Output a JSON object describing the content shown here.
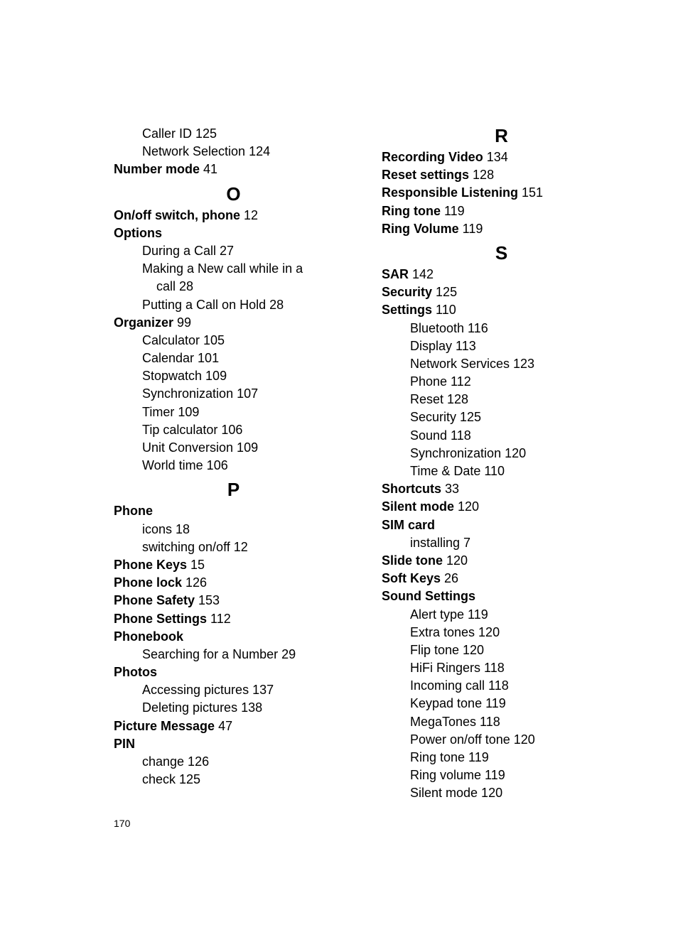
{
  "pageNumber": "170",
  "left": [
    {
      "indent": 1,
      "bold": false,
      "text": "Caller ID  125"
    },
    {
      "indent": 1,
      "bold": false,
      "text": "Network Selection  124"
    },
    {
      "indent": 0,
      "bold": false,
      "mixed": true,
      "boldPart": "Number mode",
      "rest": "  41"
    },
    {
      "letter": "O"
    },
    {
      "indent": 0,
      "bold": false,
      "mixed": true,
      "boldPart": "On/off switch, phone",
      "rest": "  12"
    },
    {
      "indent": 0,
      "bold": true,
      "text": "Options"
    },
    {
      "indent": 1,
      "bold": false,
      "text": "During a Call  27"
    },
    {
      "indent": 1,
      "bold": false,
      "text": "Making a New call while in a"
    },
    {
      "indent": 2,
      "bold": false,
      "text": "call  28"
    },
    {
      "indent": 1,
      "bold": false,
      "text": "Putting a Call on Hold  28"
    },
    {
      "indent": 0,
      "bold": false,
      "mixed": true,
      "boldPart": "Organizer",
      "rest": "  99"
    },
    {
      "indent": 1,
      "bold": false,
      "text": "Calculator  105"
    },
    {
      "indent": 1,
      "bold": false,
      "text": "Calendar  101"
    },
    {
      "indent": 1,
      "bold": false,
      "text": "Stopwatch  109"
    },
    {
      "indent": 1,
      "bold": false,
      "text": "Synchronization  107"
    },
    {
      "indent": 1,
      "bold": false,
      "text": "Timer  109"
    },
    {
      "indent": 1,
      "bold": false,
      "text": "Tip calculator  106"
    },
    {
      "indent": 1,
      "bold": false,
      "text": "Unit Conversion  109"
    },
    {
      "indent": 1,
      "bold": false,
      "text": "World time  106"
    },
    {
      "letter": "P"
    },
    {
      "indent": 0,
      "bold": true,
      "text": "Phone"
    },
    {
      "indent": 1,
      "bold": false,
      "text": "icons  18"
    },
    {
      "indent": 1,
      "bold": false,
      "text": "switching on/off  12"
    },
    {
      "indent": 0,
      "bold": false,
      "mixed": true,
      "boldPart": "Phone Keys",
      "rest": "  15"
    },
    {
      "indent": 0,
      "bold": false,
      "mixed": true,
      "boldPart": "Phone lock",
      "rest": "  126"
    },
    {
      "indent": 0,
      "bold": false,
      "mixed": true,
      "boldPart": "Phone Safety",
      "rest": "  153"
    },
    {
      "indent": 0,
      "bold": false,
      "mixed": true,
      "boldPart": "Phone Settings",
      "rest": "  112"
    },
    {
      "indent": 0,
      "bold": true,
      "text": "Phonebook"
    },
    {
      "indent": 1,
      "bold": false,
      "text": "Searching for a Number  29"
    },
    {
      "indent": 0,
      "bold": true,
      "text": "Photos"
    },
    {
      "indent": 1,
      "bold": false,
      "text": "Accessing pictures  137"
    },
    {
      "indent": 1,
      "bold": false,
      "text": "Deleting pictures  138"
    },
    {
      "indent": 0,
      "bold": false,
      "mixed": true,
      "boldPart": "Picture Message",
      "rest": "  47"
    },
    {
      "indent": 0,
      "bold": true,
      "text": "PIN"
    },
    {
      "indent": 1,
      "bold": false,
      "text": "change  126"
    },
    {
      "indent": 1,
      "bold": false,
      "text": "check  125"
    }
  ],
  "right": [
    {
      "letter": "R",
      "first": true
    },
    {
      "indent": 0,
      "bold": false,
      "mixed": true,
      "boldPart": "Recording Video",
      "rest": "  134"
    },
    {
      "indent": 0,
      "bold": false,
      "mixed": true,
      "boldPart": "Reset settings",
      "rest": "  128"
    },
    {
      "indent": 0,
      "bold": false,
      "mixed": true,
      "boldPart": "Responsible Listening",
      "rest": "  151"
    },
    {
      "indent": 0,
      "bold": false,
      "mixed": true,
      "boldPart": "Ring tone",
      "rest": "  119"
    },
    {
      "indent": 0,
      "bold": false,
      "mixed": true,
      "boldPart": "Ring Volume",
      "rest": "  119"
    },
    {
      "letter": "S"
    },
    {
      "indent": 0,
      "bold": false,
      "mixed": true,
      "boldPart": "SAR",
      "rest": "  142"
    },
    {
      "indent": 0,
      "bold": false,
      "mixed": true,
      "boldPart": "Security",
      "rest": "  125"
    },
    {
      "indent": 0,
      "bold": false,
      "mixed": true,
      "boldPart": "Settings",
      "rest": "  110"
    },
    {
      "indent": 1,
      "bold": false,
      "text": "Bluetooth  116"
    },
    {
      "indent": 1,
      "bold": false,
      "text": "Display  113"
    },
    {
      "indent": 1,
      "bold": false,
      "text": "Network Services  123"
    },
    {
      "indent": 1,
      "bold": false,
      "text": "Phone  112"
    },
    {
      "indent": 1,
      "bold": false,
      "text": "Reset  128"
    },
    {
      "indent": 1,
      "bold": false,
      "text": "Security  125"
    },
    {
      "indent": 1,
      "bold": false,
      "text": "Sound  118"
    },
    {
      "indent": 1,
      "bold": false,
      "text": "Synchronization  120"
    },
    {
      "indent": 1,
      "bold": false,
      "text": "Time & Date  110"
    },
    {
      "indent": 0,
      "bold": false,
      "mixed": true,
      "boldPart": "Shortcuts",
      "rest": "  33"
    },
    {
      "indent": 0,
      "bold": false,
      "mixed": true,
      "boldPart": "Silent mode",
      "rest": "  120"
    },
    {
      "indent": 0,
      "bold": true,
      "text": "SIM card"
    },
    {
      "indent": 1,
      "bold": false,
      "text": "installing  7"
    },
    {
      "indent": 0,
      "bold": false,
      "mixed": true,
      "boldPart": "Slide tone",
      "rest": "  120"
    },
    {
      "indent": 0,
      "bold": false,
      "mixed": true,
      "boldPart": "Soft Keys",
      "rest": "  26"
    },
    {
      "indent": 0,
      "bold": true,
      "text": "Sound Settings"
    },
    {
      "indent": 1,
      "bold": false,
      "text": "Alert type  119"
    },
    {
      "indent": 1,
      "bold": false,
      "text": "Extra tones  120"
    },
    {
      "indent": 1,
      "bold": false,
      "text": "Flip tone  120"
    },
    {
      "indent": 1,
      "bold": false,
      "text": "HiFi Ringers  118"
    },
    {
      "indent": 1,
      "bold": false,
      "text": "Incoming call  118"
    },
    {
      "indent": 1,
      "bold": false,
      "text": "Keypad tone  119"
    },
    {
      "indent": 1,
      "bold": false,
      "text": "MegaTones  118"
    },
    {
      "indent": 1,
      "bold": false,
      "text": "Power on/off tone  120"
    },
    {
      "indent": 1,
      "bold": false,
      "text": "Ring tone  119"
    },
    {
      "indent": 1,
      "bold": false,
      "text": "Ring volume  119"
    },
    {
      "indent": 1,
      "bold": false,
      "text": "Silent mode  120"
    }
  ]
}
